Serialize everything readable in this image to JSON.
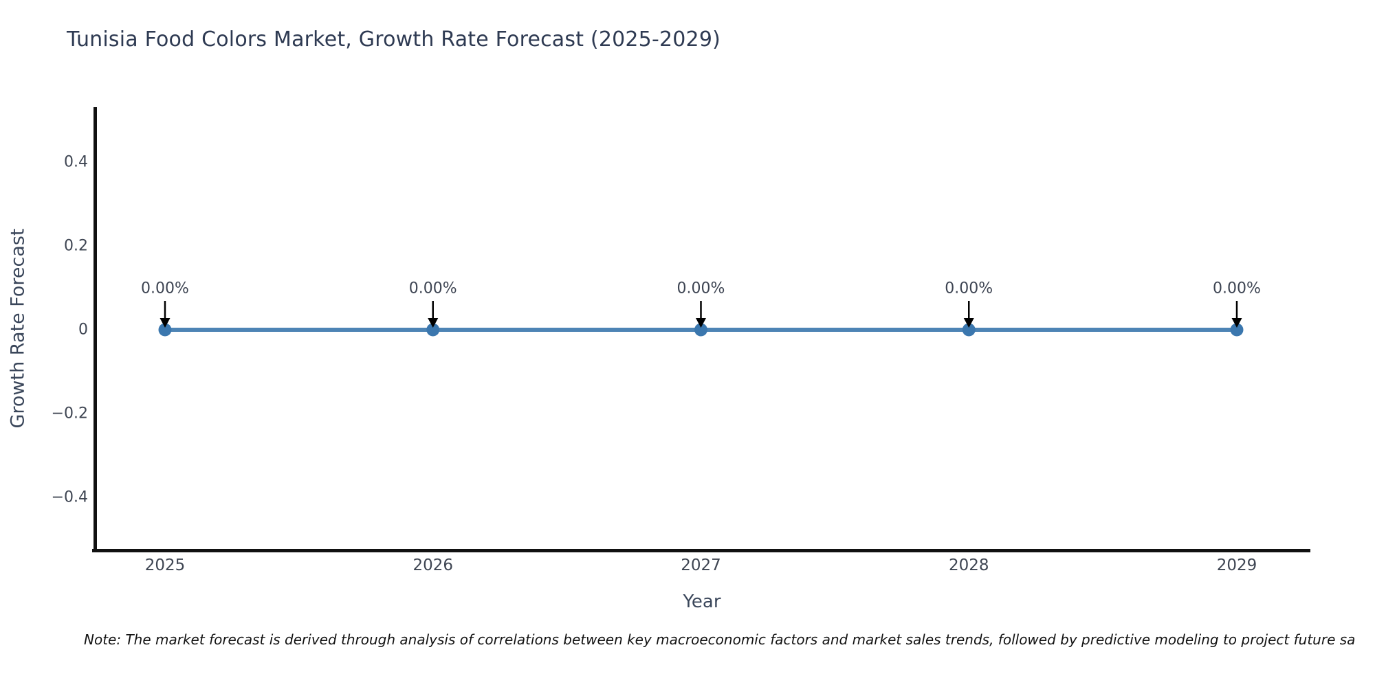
{
  "footnote": {
    "text": "Note: The market forecast is derived through analysis of correlations between key macroeconomic factors and market sales trends, followed by predictive modeling to project future sa"
  },
  "chart_data": {
    "type": "line",
    "title": "Tunisia Food Colors Market, Growth Rate Forecast (2025-2029)",
    "xlabel": "Year",
    "ylabel": "Growth Rate Forecast",
    "categories": [
      "2025",
      "2026",
      "2027",
      "2028",
      "2029"
    ],
    "series": [
      {
        "name": "Growth Rate Forecast",
        "values": [
          0,
          0,
          0,
          0,
          0
        ]
      }
    ],
    "point_labels": [
      "0.00%",
      "0.00%",
      "0.00%",
      "0.00%",
      "0.00%"
    ],
    "yticks": [
      {
        "value": 0.4,
        "label": "0.4"
      },
      {
        "value": 0.2,
        "label": "0.2"
      },
      {
        "value": 0,
        "label": "0"
      },
      {
        "value": -0.2,
        "label": "−0.2"
      },
      {
        "value": -0.4,
        "label": "−0.4"
      }
    ],
    "ylim": [
      -0.53,
      0.53
    ],
    "grid": false,
    "legend": "none",
    "annotation_style": "down-arrow",
    "colors": {
      "line": "#4d84b5",
      "marker": "#3b77ae",
      "arrow": "#000000",
      "axis": "#111111",
      "title_text": "#2e3a52",
      "tick_text": "#3e4552",
      "axis_label_text": "#3a465a",
      "note_text": "#121212"
    }
  }
}
